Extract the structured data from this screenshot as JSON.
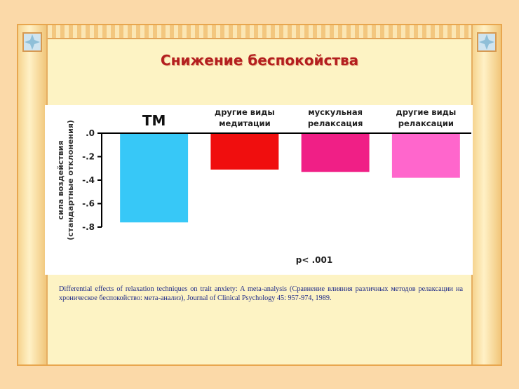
{
  "title": "Снижение беспокойства",
  "citation": "Differential effects of relaxation techniques on trait anxiety: A meta-analysis (Сравнение влияния различных методов релаксации на хроническое беспокойство: мета-анализ), Journal of Clinical Psychology 45: 957-974, 1989.",
  "colors": {
    "page_bg": "#fbd9a8",
    "panel_bg": "#fdf3c4",
    "title": "#b31f1f",
    "citation": "#1e2a88"
  },
  "chart_data": {
    "type": "bar",
    "categories": [
      "TM",
      "другие виды медитации",
      "мускульная релаксация",
      "другие виды релаксации"
    ],
    "category_label_lines": [
      [
        "TM"
      ],
      [
        "другие виды",
        "медитации"
      ],
      [
        "мускульная",
        "релаксация"
      ],
      [
        "другие виды",
        "релаксации"
      ]
    ],
    "values": [
      -0.76,
      -0.31,
      -0.33,
      -0.38
    ],
    "colors": [
      "#37c8f7",
      "#f00e0e",
      "#f01f86",
      "#ff66cc"
    ],
    "ylabel_lines": [
      "сила воздействия",
      "(стандартные отклонения)"
    ],
    "ylim": [
      -0.8,
      0
    ],
    "yticks": [
      0,
      -0.2,
      -0.4,
      -0.6,
      -0.8
    ],
    "ytick_labels": [
      ".0",
      "-.2",
      "-.4",
      "-.6",
      "-.8"
    ],
    "annotation": "p< .001",
    "grid": false,
    "legend": "none"
  }
}
